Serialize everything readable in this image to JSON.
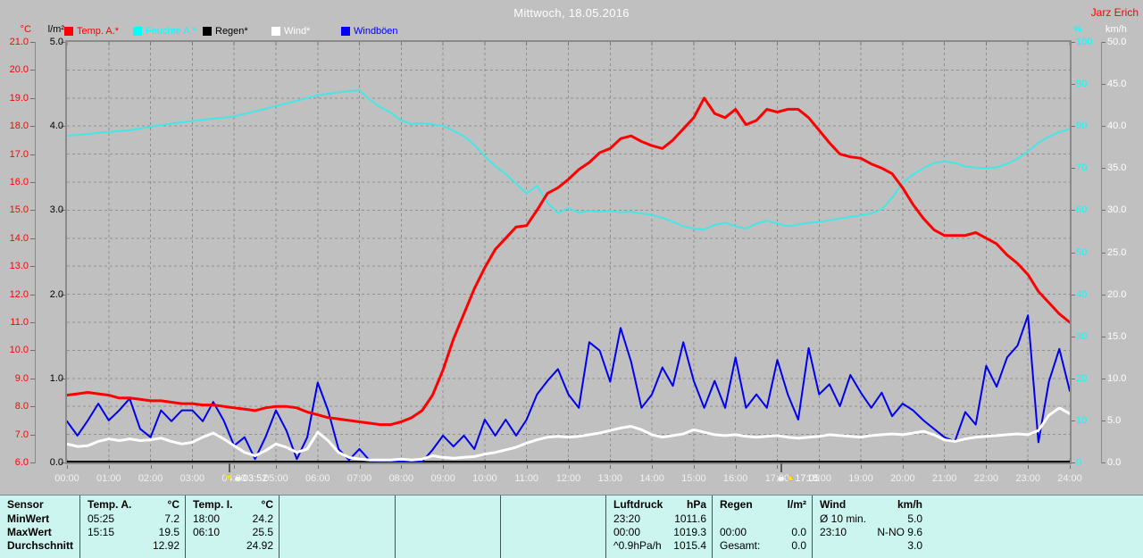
{
  "header": {
    "title": "Mittwoch, 18.05.2016",
    "station": "Jarz Erich"
  },
  "legend": [
    {
      "label": "Temp. A.*",
      "color": "#ff0000"
    },
    {
      "label": "Feuchte A.*",
      "color": "#00ffff"
    },
    {
      "label": "Regen*",
      "color": "#000000"
    },
    {
      "label": "Wind*",
      "color": "#ffffff"
    },
    {
      "label": "Windböen",
      "color": "#0000ff"
    }
  ],
  "colors": {
    "background": "#c0c0c0",
    "grid": "#8f8f8f",
    "axis": "#8a8a8a",
    "table_bg": "#ccf5f0",
    "title": "#ffffff"
  },
  "axes": {
    "temp": {
      "unit": "°C",
      "min": 6,
      "max": 21,
      "step": 1,
      "decimals": 1,
      "color": "#ff0000"
    },
    "rain": {
      "unit": "l/m²",
      "min": 0,
      "max": 5,
      "step": 1,
      "decimals": 1,
      "color": "#000000"
    },
    "humidity": {
      "unit": "%",
      "min": 0,
      "max": 100,
      "step": 10,
      "decimals": 0,
      "color": "#00ffff"
    },
    "wind": {
      "unit": "km/h",
      "min": 0,
      "max": 50,
      "step": 5,
      "decimals": 1,
      "color": "#ffffff"
    },
    "time": {
      "labels": [
        "00:00",
        "01:00",
        "02:00",
        "03:00",
        "04:00",
        "05:00",
        "06:00",
        "07:00",
        "08:00",
        "09:00",
        "10:00",
        "11:00",
        "12:00",
        "13:00",
        "14:00",
        "15:00",
        "16:00",
        "17:00",
        "18:00",
        "19:00",
        "20:00",
        "21:00",
        "22:00",
        "23:00",
        "24:00"
      ]
    }
  },
  "markers": [
    {
      "label": "03:52",
      "hour": 3.8667,
      "direction": "down"
    },
    {
      "label": "17:05",
      "hour": 17.0833,
      "direction": "up"
    }
  ],
  "chart_data": {
    "type": "line",
    "x_unit": "hours",
    "x_range": [
      0,
      24
    ],
    "x_step": 0.25,
    "grid": "dashed-hourly-and-per-degree",
    "series": [
      {
        "name": "Regen",
        "axis": "rain",
        "color": "#000000",
        "width": 2,
        "x": [
          0,
          24
        ],
        "values": [
          0,
          0
        ]
      },
      {
        "name": "Feuchte A.",
        "axis": "humidity",
        "color": "#45e6e6",
        "width": 2,
        "values": [
          77.7,
          77.9,
          78.1,
          78.4,
          78.6,
          78.8,
          79.0,
          79.4,
          79.8,
          80.2,
          80.6,
          80.9,
          81.2,
          81.5,
          81.8,
          82.0,
          82.3,
          82.9,
          83.5,
          84.1,
          84.8,
          85.4,
          86.0,
          86.7,
          87.3,
          87.7,
          88.0,
          88.3,
          88.5,
          86.3,
          84.5,
          83.2,
          81.3,
          80.5,
          80.7,
          80.4,
          80.0,
          78.9,
          77.6,
          75.5,
          72.8,
          70.5,
          68.6,
          66.3,
          64.0,
          65.8,
          61.8,
          59.3,
          60.5,
          59.4,
          59.8,
          59.6,
          59.8,
          59.5,
          59.6,
          59.2,
          58.9,
          58.2,
          57.2,
          56.2,
          55.6,
          55.4,
          56.5,
          57.0,
          56.2,
          55.6,
          56.8,
          57.5,
          56.8,
          56.2,
          56.6,
          57.0,
          57.2,
          57.6,
          58.0,
          58.4,
          58.8,
          59.2,
          60.2,
          63.0,
          66.5,
          68.5,
          70.0,
          71.2,
          71.6,
          71.2,
          70.4,
          70.1,
          70.0,
          70.2,
          71.0,
          72.2,
          74.0,
          76.0,
          77.5,
          78.6,
          79.3
        ]
      },
      {
        "name": "Windböen",
        "axis": "wind",
        "color": "#0000ee",
        "width": 2,
        "values": [
          4.9,
          3.2,
          5.0,
          7.0,
          5.0,
          6.2,
          7.6,
          4.0,
          3.0,
          6.2,
          4.9,
          6.2,
          6.2,
          4.9,
          7.2,
          5.0,
          2.0,
          3.0,
          0.4,
          3.0,
          6.2,
          3.8,
          0.4,
          3.0,
          9.5,
          6.2,
          1.6,
          0.3,
          1.6,
          0.2,
          0.1,
          0.1,
          0.1,
          0.1,
          0.1,
          1.5,
          3.2,
          1.9,
          3.2,
          1.6,
          5.1,
          3.2,
          5.1,
          3.2,
          5.1,
          8.1,
          9.7,
          11.1,
          8.1,
          6.5,
          14.3,
          13.3,
          9.6,
          16.0,
          12.0,
          6.5,
          8.1,
          11.3,
          9.1,
          14.3,
          9.7,
          6.5,
          9.7,
          6.5,
          12.5,
          6.5,
          8.1,
          6.5,
          12.2,
          8.1,
          5.1,
          13.6,
          8.1,
          9.3,
          6.7,
          10.4,
          8.3,
          6.5,
          8.3,
          5.5,
          7.0,
          6.2,
          5.0,
          4.0,
          3.0,
          2.5,
          6.0,
          4.5,
          11.5,
          9.0,
          12.5,
          13.9,
          17.5,
          2.4,
          9.6,
          13.5,
          8.5
        ]
      },
      {
        "name": "Wind",
        "axis": "wind",
        "color": "#ffffff",
        "width": 3,
        "values": [
          2.2,
          1.9,
          2.0,
          2.5,
          2.8,
          2.6,
          2.8,
          2.6,
          2.7,
          2.9,
          2.5,
          2.2,
          2.4,
          3.0,
          3.5,
          2.8,
          2.0,
          1.2,
          0.8,
          1.4,
          2.2,
          1.8,
          1.2,
          1.6,
          3.6,
          2.6,
          1.2,
          0.6,
          0.4,
          0.3,
          0.3,
          0.3,
          0.4,
          0.3,
          0.4,
          0.8,
          0.6,
          0.5,
          0.6,
          0.7,
          1.0,
          1.2,
          1.5,
          1.8,
          2.3,
          2.7,
          3.0,
          3.1,
          3.0,
          3.1,
          3.3,
          3.5,
          3.8,
          4.1,
          4.3,
          3.9,
          3.3,
          3.0,
          3.2,
          3.4,
          3.9,
          3.6,
          3.3,
          3.2,
          3.3,
          3.1,
          3.0,
          3.1,
          3.2,
          3.0,
          2.9,
          3.0,
          3.1,
          3.3,
          3.2,
          3.1,
          3.0,
          3.2,
          3.3,
          3.4,
          3.3,
          3.5,
          3.7,
          3.3,
          2.7,
          2.5,
          2.8,
          3.0,
          3.1,
          3.2,
          3.3,
          3.4,
          3.3,
          3.8,
          5.6,
          6.5,
          5.8
        ]
      },
      {
        "name": "Temp. A.",
        "axis": "temp",
        "color": "#ff0000",
        "width": 3,
        "values": [
          8.4,
          8.45,
          8.5,
          8.45,
          8.4,
          8.3,
          8.3,
          8.25,
          8.2,
          8.2,
          8.15,
          8.1,
          8.1,
          8.05,
          8.05,
          8.0,
          7.95,
          7.9,
          7.85,
          7.95,
          8.0,
          8.0,
          7.95,
          7.8,
          7.7,
          7.6,
          7.55,
          7.5,
          7.45,
          7.4,
          7.35,
          7.35,
          7.45,
          7.6,
          7.85,
          8.4,
          9.3,
          10.4,
          11.3,
          12.2,
          12.95,
          13.6,
          14.0,
          14.4,
          14.45,
          15.0,
          15.6,
          15.8,
          16.1,
          16.45,
          16.7,
          17.05,
          17.2,
          17.55,
          17.65,
          17.45,
          17.3,
          17.2,
          17.5,
          17.9,
          18.3,
          19.0,
          18.45,
          18.3,
          18.6,
          18.05,
          18.2,
          18.6,
          18.5,
          18.6,
          18.6,
          18.3,
          17.85,
          17.4,
          17.0,
          16.9,
          16.85,
          16.65,
          16.5,
          16.3,
          15.8,
          15.2,
          14.7,
          14.3,
          14.1,
          14.1,
          14.1,
          14.2,
          14.0,
          13.8,
          13.4,
          13.1,
          12.7,
          12.1,
          11.7,
          11.3,
          11.0
        ]
      }
    ]
  },
  "table": {
    "row_labels": [
      "Sensor",
      "MinWert",
      "MaxWert",
      "Durchschnitt"
    ],
    "columns": [
      {
        "name": "Temp. A.",
        "unit": "°C",
        "rows": [
          [
            "05:25",
            "7.2"
          ],
          [
            "15:15",
            "19.5"
          ],
          [
            "",
            "12.92"
          ]
        ]
      },
      {
        "name": "Temp. I.",
        "unit": "°C",
        "rows": [
          [
            "18:00",
            "24.2"
          ],
          [
            "06:10",
            "25.5"
          ],
          [
            "",
            "24.92"
          ]
        ]
      },
      {
        "name": "",
        "unit": "",
        "rows": [
          [
            "",
            ""
          ],
          [
            "",
            ""
          ],
          [
            "",
            ""
          ]
        ]
      },
      {
        "name": "",
        "unit": "",
        "rows": [
          [
            "",
            ""
          ],
          [
            "",
            ""
          ],
          [
            "",
            ""
          ]
        ]
      },
      {
        "name": "",
        "unit": "",
        "rows": [
          [
            "",
            ""
          ],
          [
            "",
            ""
          ],
          [
            "",
            ""
          ]
        ]
      },
      {
        "name": "Luftdruck",
        "unit": "hPa",
        "rows": [
          [
            "23:20",
            "1011.6"
          ],
          [
            "00:00",
            "1019.3"
          ],
          [
            "^0.9hPa/h",
            "1015.4"
          ]
        ]
      },
      {
        "name": "Regen",
        "unit": "l/m²",
        "rows": [
          [
            "",
            ""
          ],
          [
            "00:00",
            "0.0"
          ],
          [
            "Gesamt:",
            "0.0"
          ]
        ]
      },
      {
        "name": "Wind",
        "unit": "km/h",
        "rows": [
          [
            "Ø 10 min.",
            "5.0"
          ],
          [
            "23:10",
            "N-NO 9.6"
          ],
          [
            "",
            "3.0"
          ]
        ]
      }
    ]
  }
}
